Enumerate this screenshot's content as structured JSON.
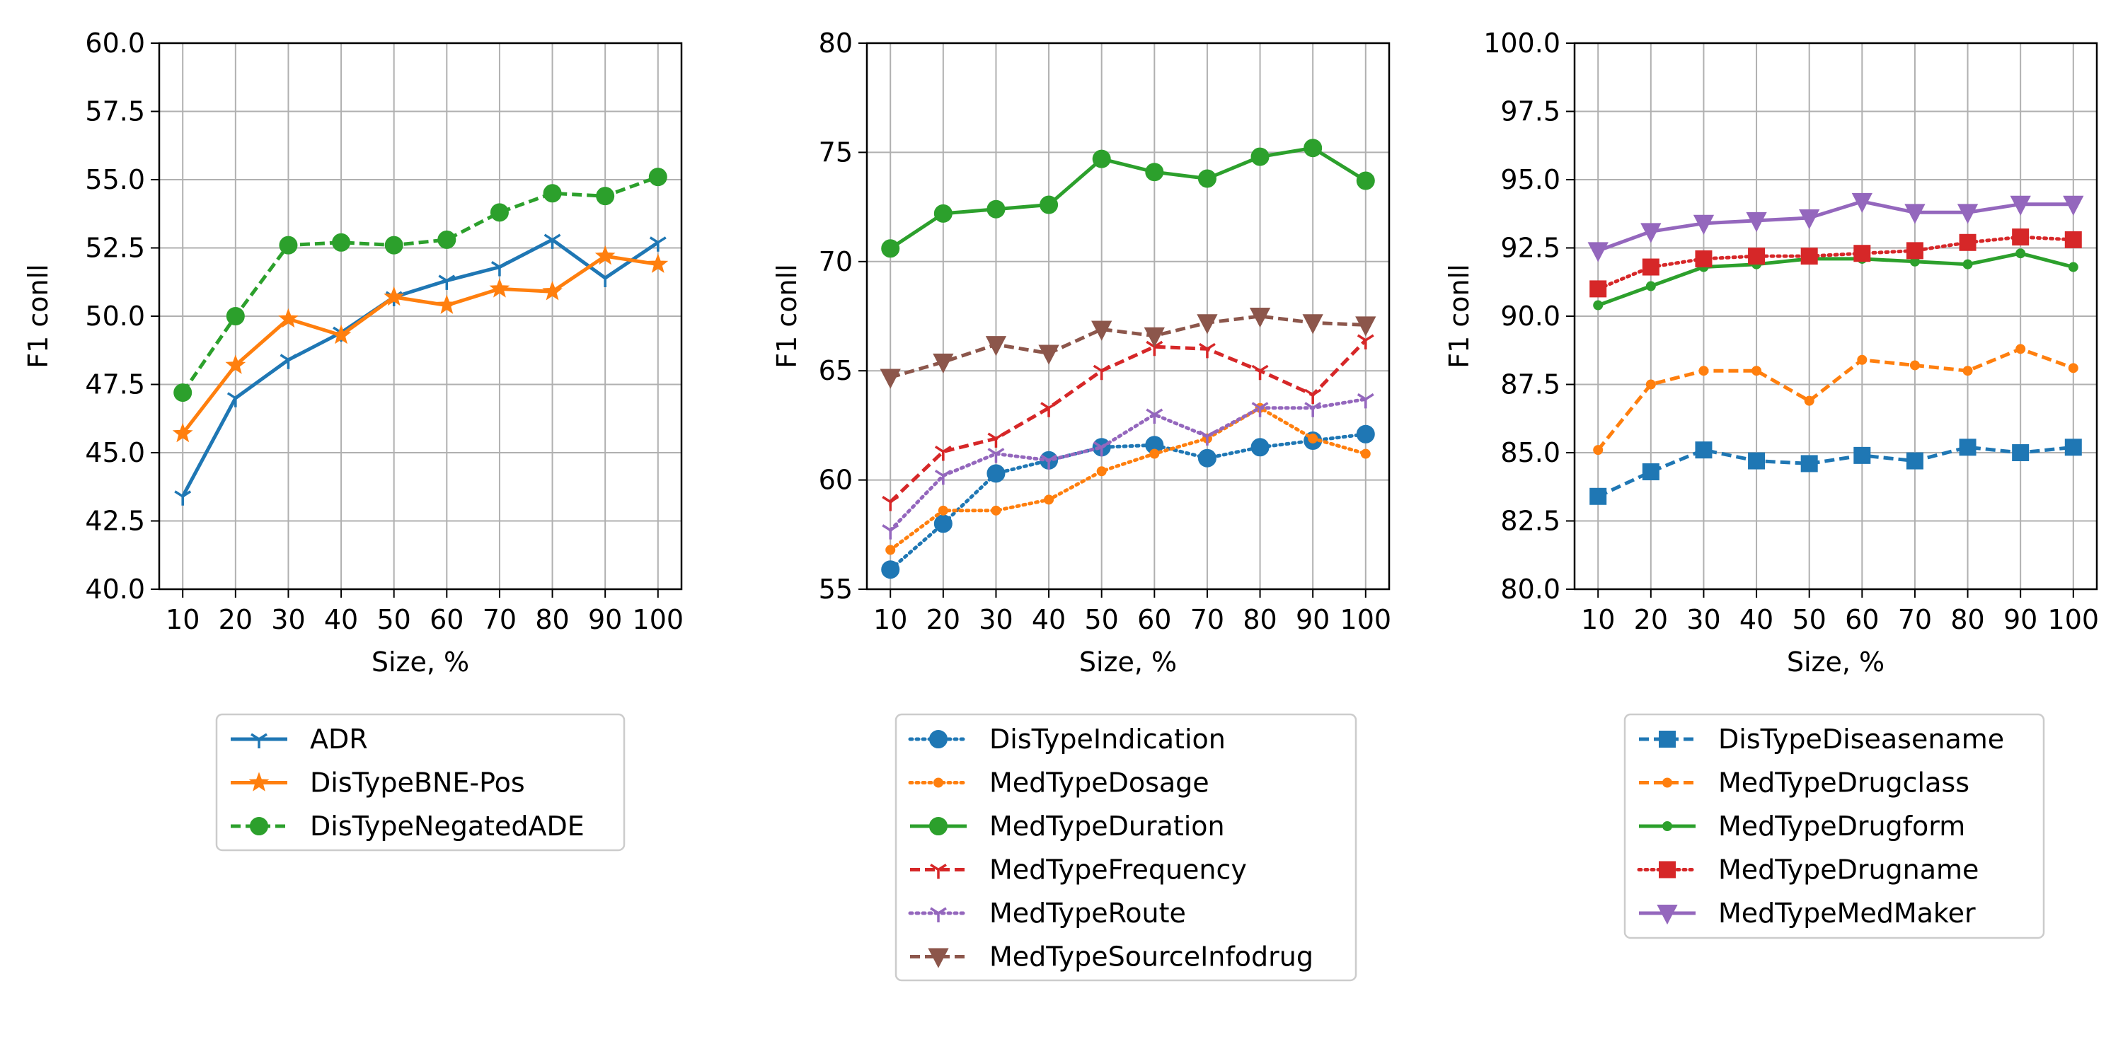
{
  "chart_data": [
    {
      "type": "line",
      "xlabel": "Size, %",
      "ylabel": "F1 conll",
      "x": [
        10,
        20,
        30,
        40,
        50,
        60,
        70,
        80,
        90,
        100
      ],
      "ylim": [
        40.0,
        60.0
      ],
      "yticks": [
        "40.0",
        "42.5",
        "45.0",
        "47.5",
        "50.0",
        "52.5",
        "55.0",
        "57.5",
        "60.0"
      ],
      "xticks": [
        "10",
        "20",
        "30",
        "40",
        "50",
        "60",
        "70",
        "80",
        "90",
        "100"
      ],
      "grid": true,
      "legend_position": "below",
      "series": [
        {
          "name": "ADR",
          "color": "#1f77b4",
          "linestyle": "solid",
          "marker": "tri-down",
          "values": [
            43.4,
            47.0,
            48.4,
            49.4,
            50.7,
            51.3,
            51.8,
            52.8,
            51.4,
            52.7
          ]
        },
        {
          "name": "DisTypeBNE-Pos",
          "color": "#ff7f0e",
          "linestyle": "solid",
          "marker": "star",
          "values": [
            45.7,
            48.2,
            49.9,
            49.3,
            50.7,
            50.4,
            51.0,
            50.9,
            52.2,
            51.9
          ]
        },
        {
          "name": "DisTypeNegatedADE",
          "color": "#2ca02c",
          "linestyle": "dashed",
          "marker": "circle",
          "values": [
            47.2,
            50.0,
            52.6,
            52.7,
            52.6,
            52.8,
            53.8,
            54.5,
            54.4,
            55.1
          ]
        }
      ]
    },
    {
      "type": "line",
      "xlabel": "Size, %",
      "ylabel": "F1 conll",
      "x": [
        10,
        20,
        30,
        40,
        50,
        60,
        70,
        80,
        90,
        100
      ],
      "ylim": [
        55,
        80
      ],
      "yticks": [
        "55",
        "60",
        "65",
        "70",
        "75",
        "80"
      ],
      "xticks": [
        "10",
        "20",
        "30",
        "40",
        "50",
        "60",
        "70",
        "80",
        "90",
        "100"
      ],
      "grid": true,
      "legend_position": "below",
      "series": [
        {
          "name": "DisTypeIndication",
          "color": "#1f77b4",
          "linestyle": "dotted",
          "marker": "circle",
          "values": [
            55.9,
            58.0,
            60.3,
            60.9,
            61.5,
            61.6,
            61.0,
            61.5,
            61.8,
            62.1
          ]
        },
        {
          "name": "MedTypeDosage",
          "color": "#ff7f0e",
          "linestyle": "dotted",
          "marker": "point",
          "values": [
            56.8,
            58.6,
            58.6,
            59.1,
            60.4,
            61.2,
            61.9,
            63.3,
            61.9,
            61.2
          ]
        },
        {
          "name": "MedTypeDuration",
          "color": "#2ca02c",
          "linestyle": "solid",
          "marker": "circle",
          "values": [
            70.6,
            72.2,
            72.4,
            72.6,
            74.7,
            74.1,
            73.8,
            74.8,
            75.2,
            73.7
          ]
        },
        {
          "name": "MedTypeFrequency",
          "color": "#d62728",
          "linestyle": "dashed",
          "marker": "tri-down",
          "values": [
            59.0,
            61.3,
            61.9,
            63.3,
            65.0,
            66.1,
            66.0,
            65.0,
            63.9,
            66.4
          ]
        },
        {
          "name": "MedTypeRoute",
          "color": "#9467bd",
          "linestyle": "dotted",
          "marker": "tri-down",
          "values": [
            57.7,
            60.2,
            61.2,
            60.9,
            61.5,
            63.0,
            62.0,
            63.3,
            63.3,
            63.7
          ]
        },
        {
          "name": "MedTypeSourceInfodrug",
          "color": "#8c564b",
          "linestyle": "dashed",
          "marker": "triangle-down",
          "values": [
            64.7,
            65.4,
            66.2,
            65.8,
            66.9,
            66.6,
            67.2,
            67.5,
            67.2,
            67.1
          ]
        }
      ]
    },
    {
      "type": "line",
      "xlabel": "Size, %",
      "ylabel": "F1 conll",
      "x": [
        10,
        20,
        30,
        40,
        50,
        60,
        70,
        80,
        90,
        100
      ],
      "ylim": [
        80.0,
        100.0
      ],
      "yticks": [
        "80.0",
        "82.5",
        "85.0",
        "87.5",
        "90.0",
        "92.5",
        "95.0",
        "97.5",
        "100.0"
      ],
      "xticks": [
        "10",
        "20",
        "30",
        "40",
        "50",
        "60",
        "70",
        "80",
        "90",
        "100"
      ],
      "grid": true,
      "legend_position": "below",
      "series": [
        {
          "name": "DisTypeDiseasename",
          "color": "#1f77b4",
          "linestyle": "dashed",
          "marker": "square",
          "values": [
            83.4,
            84.3,
            85.1,
            84.7,
            84.6,
            84.9,
            84.7,
            85.2,
            85.0,
            85.2
          ]
        },
        {
          "name": "MedTypeDrugclass",
          "color": "#ff7f0e",
          "linestyle": "dashed",
          "marker": "point",
          "values": [
            85.1,
            87.5,
            88.0,
            88.0,
            86.9,
            88.4,
            88.2,
            88.0,
            88.8,
            88.1
          ]
        },
        {
          "name": "MedTypeDrugform",
          "color": "#2ca02c",
          "linestyle": "solid",
          "marker": "point",
          "values": [
            90.4,
            91.1,
            91.8,
            91.9,
            92.1,
            92.1,
            92.0,
            91.9,
            92.3,
            91.8
          ]
        },
        {
          "name": "MedTypeDrugname",
          "color": "#d62728",
          "linestyle": "dotted",
          "marker": "square",
          "values": [
            91.0,
            91.8,
            92.1,
            92.2,
            92.2,
            92.3,
            92.4,
            92.7,
            92.9,
            92.8
          ]
        },
        {
          "name": "MedTypeMedMaker",
          "color": "#9467bd",
          "linestyle": "solid",
          "marker": "triangle-down",
          "values": [
            92.4,
            93.1,
            93.4,
            93.5,
            93.6,
            94.2,
            93.8,
            93.8,
            94.1,
            94.1
          ]
        }
      ]
    }
  ]
}
